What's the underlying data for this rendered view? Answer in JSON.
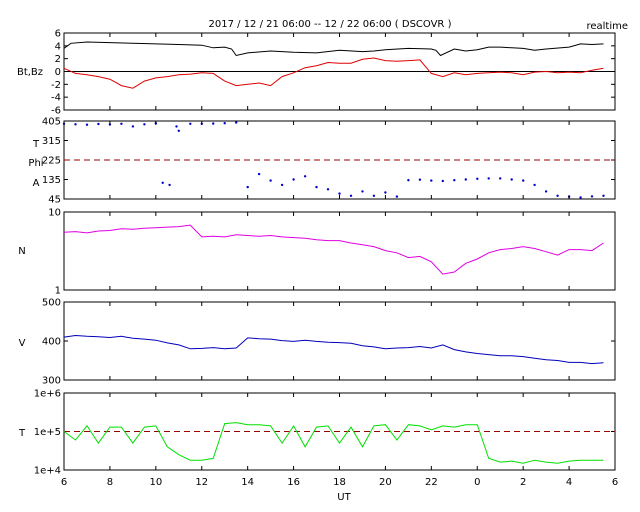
{
  "header": {
    "title": "2017 / 12 / 21   06:00 -- 12 / 22   06:00 ( DSCOVR )",
    "badge": "realtime"
  },
  "colors": {
    "bt": "#000000",
    "bz": "#e00000",
    "phi": "#0000cc",
    "density": "#e000e0",
    "speed": "#0000bb",
    "temperature": "#00e000",
    "reference_line": "#990000"
  },
  "chart_data": [
    {
      "type": "line",
      "panel": "magnetic-field",
      "ylabel": "Bt,Bz",
      "xlabel": "",
      "ylim": [
        -6,
        6
      ],
      "yticks": [
        "6",
        "4",
        "2",
        "0",
        "-2",
        "-4",
        "-6"
      ],
      "x_unit": "hours UT since 2017-12-21 06:00",
      "series": [
        {
          "name": "Bt",
          "x": [
            0,
            0.3,
            1,
            2,
            3,
            4,
            5,
            6,
            6.5,
            7,
            7.3,
            7.5,
            8,
            9,
            10,
            11,
            12,
            13,
            13.5,
            14,
            15,
            16,
            16.2,
            16.4,
            17,
            17.5,
            18,
            18.5,
            19,
            19.5,
            20,
            20.5,
            21,
            22,
            22.5,
            23,
            23.5
          ],
          "y": [
            3.6,
            4.4,
            4.6,
            4.5,
            4.4,
            4.3,
            4.2,
            4.1,
            3.7,
            3.8,
            3.5,
            2.5,
            2.9,
            3.2,
            3.0,
            2.9,
            3.3,
            3.1,
            3.2,
            3.4,
            3.6,
            3.5,
            3.3,
            2.5,
            3.5,
            3.2,
            3.4,
            3.8,
            3.8,
            3.7,
            3.6,
            3.3,
            3.5,
            3.8,
            4.3,
            4.2,
            4.3
          ]
        },
        {
          "name": "Bz",
          "x": [
            0,
            0.5,
            1,
            1.5,
            2,
            2.5,
            3,
            3.5,
            4,
            4.5,
            5,
            5.5,
            6,
            6.5,
            7,
            7.5,
            8,
            8.5,
            9,
            9.5,
            10,
            10.5,
            11,
            11.5,
            12,
            12.5,
            13,
            13.5,
            14,
            14.5,
            15,
            15.5,
            16,
            16.5,
            17,
            17.5,
            18,
            18.5,
            19,
            19.5,
            20,
            20.5,
            21,
            21.5,
            22,
            22.5,
            23,
            23.5
          ],
          "y": [
            0.5,
            -0.3,
            -0.5,
            -0.8,
            -1.2,
            -2.2,
            -2.6,
            -1.5,
            -1.0,
            -0.8,
            -0.5,
            -0.4,
            -0.2,
            -0.3,
            -1.5,
            -2.2,
            -2.0,
            -1.8,
            -2.2,
            -0.8,
            -0.2,
            0.6,
            0.9,
            1.4,
            1.3,
            1.3,
            1.9,
            2.1,
            1.7,
            1.6,
            1.7,
            1.8,
            -0.3,
            -0.8,
            -0.2,
            -0.5,
            -0.3,
            -0.2,
            -0.1,
            -0.2,
            -0.5,
            -0.1,
            0.0,
            -0.2,
            -0.1,
            -0.2,
            0.2,
            0.5
          ]
        }
      ]
    },
    {
      "type": "scatter",
      "panel": "phi-angle",
      "ylabel": "T Phi A",
      "ylim": [
        45,
        405
      ],
      "yticks": [
        "405",
        "315",
        "225",
        "135",
        "45"
      ],
      "reference_line": 225,
      "series": [
        {
          "name": "Phi",
          "x": [
            0,
            0.5,
            1,
            1.5,
            2,
            2.5,
            3,
            3.5,
            4,
            4.3,
            4.6,
            4.9,
            5,
            5.5,
            6,
            6.5,
            7,
            7.5,
            8,
            8.5,
            9,
            9.5,
            10,
            10.5,
            11,
            11.5,
            12,
            12.5,
            13,
            13.5,
            14,
            14.5,
            15,
            15.5,
            16,
            16.5,
            17,
            17.5,
            18,
            18.5,
            19,
            19.5,
            20,
            20.5,
            21,
            21.5,
            22,
            22.5,
            23,
            23.5
          ],
          "y": [
            392,
            390,
            388,
            391,
            389,
            392,
            380,
            390,
            395,
            120,
            110,
            380,
            360,
            392,
            392,
            393,
            395,
            398,
            100,
            160,
            130,
            110,
            135,
            150,
            100,
            90,
            70,
            60,
            80,
            60,
            75,
            56,
            132,
            134,
            130,
            128,
            132,
            135,
            138,
            140,
            140,
            135,
            130,
            110,
            80,
            60,
            55,
            52,
            57,
            60
          ]
        }
      ]
    },
    {
      "type": "line",
      "panel": "density",
      "ylabel": "N",
      "yscale": "log",
      "ylim": [
        1,
        10
      ],
      "yticks": [
        "10",
        "1"
      ],
      "series": [
        {
          "name": "N",
          "x": [
            0,
            0.5,
            1,
            1.5,
            2,
            2.5,
            3,
            3.5,
            4,
            4.5,
            5,
            5.5,
            6,
            6.5,
            7,
            7.5,
            8,
            8.5,
            9,
            9.5,
            10,
            10.5,
            11,
            11.5,
            12,
            12.5,
            13,
            13.5,
            14,
            14.5,
            15,
            15.5,
            16,
            16.5,
            17,
            17.5,
            18,
            18.5,
            19,
            19.5,
            20,
            20.5,
            21,
            21.5,
            22,
            22.5,
            23,
            23.5
          ],
          "y": [
            5.5,
            5.6,
            5.4,
            5.7,
            5.8,
            6.1,
            6.0,
            6.2,
            6.3,
            6.4,
            6.5,
            6.8,
            4.8,
            4.9,
            4.8,
            5.1,
            5.0,
            4.9,
            5.0,
            4.8,
            4.7,
            4.6,
            4.4,
            4.3,
            4.3,
            4.0,
            3.8,
            3.6,
            3.2,
            3.0,
            2.6,
            2.7,
            2.3,
            1.6,
            1.7,
            2.2,
            2.5,
            3.0,
            3.3,
            3.4,
            3.6,
            3.4,
            3.1,
            2.8,
            3.3,
            3.3,
            3.2,
            4.0
          ]
        }
      ]
    },
    {
      "type": "line",
      "panel": "speed",
      "ylabel": "V",
      "ylim": [
        300,
        500
      ],
      "yticks": [
        "500",
        "400",
        "300"
      ],
      "series": [
        {
          "name": "V",
          "x": [
            0,
            0.5,
            1,
            1.5,
            2,
            2.5,
            3,
            3.5,
            4,
            4.5,
            5,
            5.5,
            6,
            6.5,
            7,
            7.5,
            8,
            8.5,
            9,
            9.5,
            10,
            10.5,
            11,
            11.5,
            12,
            12.5,
            13,
            13.5,
            14,
            14.5,
            15,
            15.5,
            16,
            16.5,
            17,
            17.5,
            18,
            18.5,
            19,
            19.5,
            20,
            20.5,
            21,
            21.5,
            22,
            22.5,
            23,
            23.5
          ],
          "y": [
            410,
            414,
            412,
            411,
            409,
            412,
            407,
            405,
            402,
            395,
            390,
            380,
            381,
            383,
            380,
            382,
            408,
            406,
            405,
            401,
            399,
            402,
            399,
            397,
            396,
            394,
            388,
            385,
            380,
            382,
            383,
            386,
            382,
            390,
            378,
            372,
            368,
            365,
            362,
            362,
            360,
            356,
            352,
            350,
            345,
            345,
            342,
            344
          ]
        }
      ]
    },
    {
      "type": "line",
      "panel": "temperature",
      "ylabel": "T",
      "yscale": "log",
      "ylim": [
        10000,
        1000000
      ],
      "yticks": [
        "1e+6",
        "1e+5",
        "1e+4"
      ],
      "reference_line": 100000,
      "series": [
        {
          "name": "T",
          "x": [
            0,
            0.5,
            1,
            1.5,
            2,
            2.5,
            3,
            3.5,
            4,
            4.5,
            5,
            5.5,
            6,
            6.5,
            7,
            7.5,
            8,
            8.5,
            9,
            9.5,
            10,
            10.5,
            11,
            11.5,
            12,
            12.5,
            13,
            13.5,
            14,
            14.5,
            15,
            15.5,
            16,
            16.5,
            17,
            17.5,
            18,
            18.5,
            19,
            19.5,
            20,
            20.5,
            21,
            21.5,
            22,
            22.5,
            23,
            23.5
          ],
          "y": [
            100000,
            60000,
            140000,
            50000,
            130000,
            130000,
            50000,
            130000,
            140000,
            40000,
            25000,
            18000,
            18000,
            20000,
            160000,
            170000,
            150000,
            150000,
            140000,
            50000,
            140000,
            40000,
            130000,
            140000,
            50000,
            130000,
            40000,
            140000,
            150000,
            60000,
            150000,
            140000,
            110000,
            140000,
            130000,
            150000,
            150000,
            20000,
            16000,
            17000,
            15000,
            18000,
            16000,
            15000,
            17000,
            18000,
            18000,
            18000
          ]
        }
      ]
    }
  ],
  "x_axis": {
    "label": "UT",
    "ticks": [
      "6",
      "8",
      "10",
      "12",
      "14",
      "16",
      "18",
      "20",
      "22",
      "0",
      "2",
      "4",
      "6"
    ]
  }
}
